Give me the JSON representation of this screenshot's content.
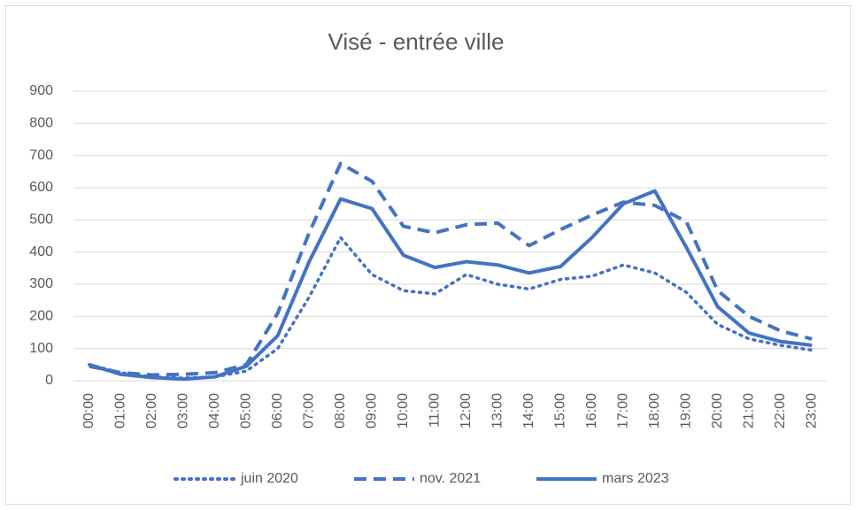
{
  "chart_data": {
    "type": "line",
    "title": "Visé - entrée ville",
    "categories": [
      "00:00",
      "01:00",
      "02:00",
      "03:00",
      "04:00",
      "05:00",
      "06:00",
      "07:00",
      "08:00",
      "09:00",
      "10:00",
      "11:00",
      "12:00",
      "13:00",
      "14:00",
      "15:00",
      "16:00",
      "17:00",
      "18:00",
      "19:00",
      "20:00",
      "21:00",
      "22:00",
      "23:00"
    ],
    "series": [
      {
        "name": "juin 2020",
        "color": "#4472c4",
        "linestyle": "dotted",
        "values": [
          50,
          25,
          12,
          8,
          12,
          30,
          100,
          260,
          445,
          330,
          280,
          270,
          330,
          300,
          285,
          315,
          325,
          360,
          335,
          275,
          175,
          130,
          110,
          95
        ]
      },
      {
        "name": "nov. 2021",
        "color": "#4472c4",
        "linestyle": "dashed",
        "values": [
          45,
          25,
          18,
          20,
          25,
          50,
          210,
          460,
          675,
          620,
          480,
          460,
          485,
          490,
          420,
          470,
          515,
          555,
          545,
          495,
          280,
          200,
          155,
          130
        ]
      },
      {
        "name": "mars 2023",
        "color": "#4472c4",
        "linestyle": "solid",
        "values": [
          50,
          20,
          10,
          5,
          12,
          45,
          140,
          370,
          565,
          535,
          390,
          352,
          370,
          360,
          335,
          355,
          445,
          550,
          590,
          415,
          230,
          148,
          122,
          110
        ]
      }
    ],
    "ylim": [
      0,
      900
    ],
    "yticks": [
      0,
      100,
      200,
      300,
      400,
      500,
      600,
      700,
      800,
      900
    ],
    "grid": true,
    "legend": "bottom"
  }
}
